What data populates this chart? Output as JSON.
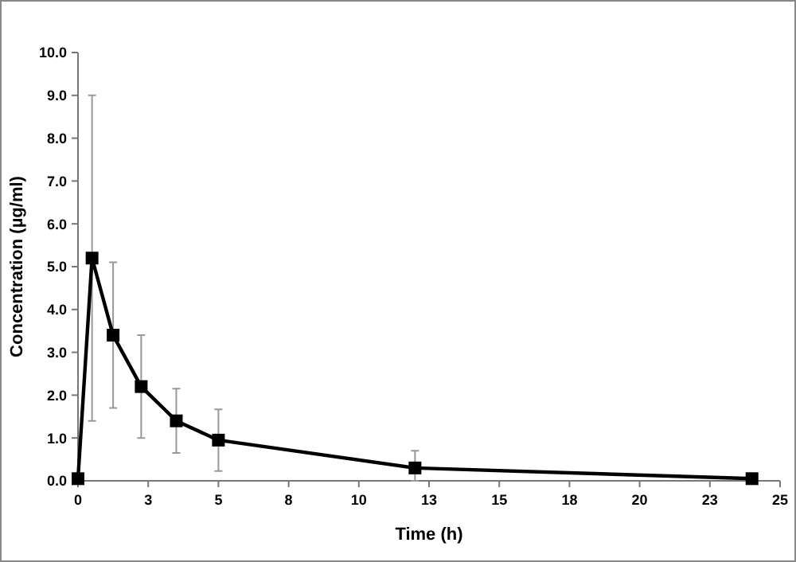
{
  "chart_data": {
    "type": "line",
    "xlabel": "Time (h)",
    "ylabel": "Concentration (µg/ml)",
    "x": [
      0,
      0.5,
      1.25,
      2.25,
      3.5,
      5,
      12,
      24
    ],
    "series": [
      {
        "color": "#000000",
        "values": [
          0.05,
          5.2,
          3.4,
          2.2,
          1.4,
          0.95,
          0.3,
          0.05
        ],
        "errors": [
          null,
          3.8,
          1.7,
          1.2,
          0.75,
          0.72,
          [
            0,
            0.7
          ],
          null
        ]
      }
    ],
    "marker": "square",
    "line_style": "solid",
    "grid": false,
    "xlim": [
      0,
      25
    ],
    "xticks": [
      0,
      {
        "value": 2.5,
        "label": "3"
      },
      5,
      {
        "value": 7.5,
        "label": "8"
      },
      10,
      {
        "value": 12.5,
        "label": "13"
      },
      15,
      {
        "value": 17.5,
        "label": "18"
      },
      20,
      {
        "value": 22.5,
        "label": "23"
      },
      25
    ],
    "ylim": [
      0,
      10
    ],
    "yticks": [
      {
        "value": 0,
        "label": "0.0"
      },
      {
        "value": 1,
        "label": "1.0"
      },
      {
        "value": 2,
        "label": "2.0"
      },
      {
        "value": 3,
        "label": "3.0"
      },
      {
        "value": 4,
        "label": "4.0"
      },
      {
        "value": 5,
        "label": "5.0"
      },
      {
        "value": 6,
        "label": "6.0"
      },
      {
        "value": 7,
        "label": "7.0"
      },
      {
        "value": 8,
        "label": "8.0"
      },
      {
        "value": 9,
        "label": "9.0"
      },
      {
        "value": 10,
        "label": "10.0"
      }
    ]
  }
}
